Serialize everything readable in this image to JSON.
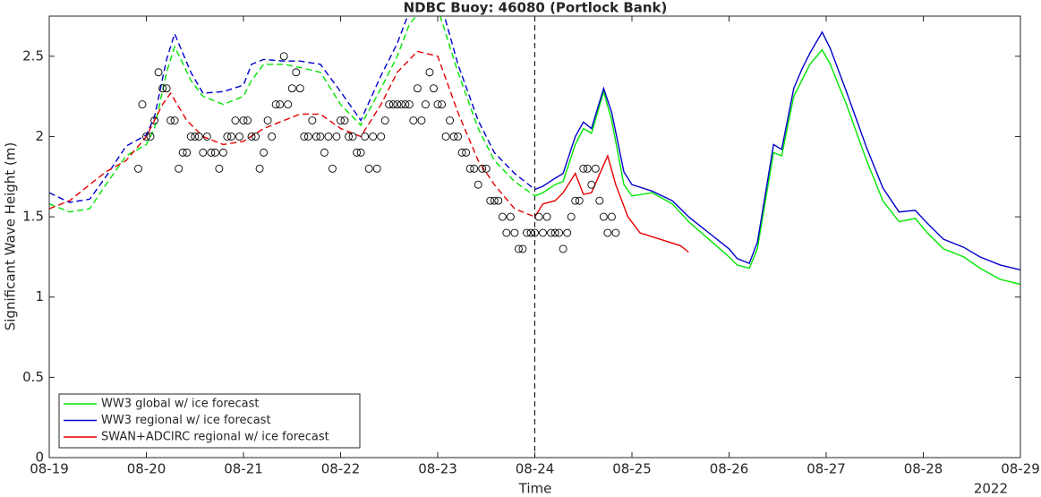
{
  "chart_data": {
    "type": "line",
    "title": "NDBC Buoy: 46080 (Portlock Bank)",
    "x_label": "Time",
    "y_label": "Significant Wave Height (m)",
    "year_label": "2022",
    "xlim": [
      0,
      240
    ],
    "xticks": [
      {
        "value": 0,
        "label": "08-19"
      },
      {
        "value": 24,
        "label": "08-20"
      },
      {
        "value": 48,
        "label": "08-21"
      },
      {
        "value": 72,
        "label": "08-22"
      },
      {
        "value": 96,
        "label": "08-23"
      },
      {
        "value": 120,
        "label": "08-24"
      },
      {
        "value": 144,
        "label": "08-25"
      },
      {
        "value": 168,
        "label": "08-26"
      },
      {
        "value": 192,
        "label": "08-27"
      },
      {
        "value": 216,
        "label": "08-28"
      },
      {
        "value": 240,
        "label": "08-29"
      }
    ],
    "ylim": [
      0,
      2.75
    ],
    "yticks": [
      0,
      0.5,
      1,
      1.5,
      2,
      2.5
    ],
    "grid": false,
    "forecast_start": 120,
    "legend": "lower left",
    "series": [
      {
        "name": "WW3 global w/ ice forecast",
        "color": "#00e600",
        "x": [
          0,
          5,
          10,
          14,
          19,
          24,
          26,
          29,
          31,
          35,
          38,
          43,
          48,
          50,
          53,
          58,
          62,
          67,
          72,
          77,
          82,
          86,
          89,
          91,
          94,
          96,
          101,
          106,
          110,
          115,
          120,
          122,
          125,
          127,
          130,
          132,
          134,
          137,
          139,
          142,
          144,
          149,
          154,
          158,
          163,
          168,
          170,
          173,
          175,
          179,
          181,
          184,
          186,
          188,
          191,
          193,
          197,
          202,
          206,
          210,
          214,
          217,
          221,
          226,
          230,
          235,
          240
        ],
        "values": [
          1.58,
          1.53,
          1.55,
          1.7,
          1.88,
          1.95,
          2.05,
          2.4,
          2.56,
          2.35,
          2.25,
          2.2,
          2.25,
          2.35,
          2.45,
          2.45,
          2.43,
          2.4,
          2.2,
          2.07,
          2.3,
          2.5,
          2.7,
          2.76,
          2.8,
          2.8,
          2.4,
          2.05,
          1.85,
          1.72,
          1.63,
          1.65,
          1.7,
          1.72,
          1.95,
          2.05,
          2.02,
          2.28,
          2.1,
          1.7,
          1.63,
          1.65,
          1.58,
          1.47,
          1.36,
          1.25,
          1.2,
          1.18,
          1.3,
          1.9,
          1.88,
          2.25,
          2.35,
          2.45,
          2.54,
          2.45,
          2.2,
          1.85,
          1.6,
          1.47,
          1.49,
          1.4,
          1.3,
          1.25,
          1.18,
          1.11,
          1.08
        ]
      },
      {
        "name": "WW3 regional w/ ice forecast",
        "color": "#0000cc",
        "x": [
          0,
          5,
          10,
          14,
          19,
          24,
          26,
          29,
          31,
          35,
          38,
          43,
          48,
          50,
          53,
          58,
          62,
          67,
          72,
          77,
          82,
          86,
          89,
          91,
          94,
          96,
          101,
          106,
          110,
          115,
          120,
          122,
          125,
          127,
          130,
          132,
          134,
          137,
          139,
          142,
          144,
          149,
          154,
          158,
          163,
          168,
          170,
          173,
          175,
          179,
          181,
          184,
          186,
          188,
          191,
          193,
          197,
          202,
          206,
          210,
          214,
          217,
          221,
          226,
          230,
          235,
          240
        ],
        "values": [
          1.65,
          1.59,
          1.61,
          1.75,
          1.94,
          2.01,
          2.12,
          2.48,
          2.64,
          2.4,
          2.27,
          2.28,
          2.32,
          2.45,
          2.48,
          2.47,
          2.47,
          2.45,
          2.28,
          2.1,
          2.38,
          2.58,
          2.78,
          2.85,
          2.9,
          2.9,
          2.45,
          2.1,
          1.9,
          1.77,
          1.67,
          1.69,
          1.74,
          1.77,
          2.0,
          2.09,
          2.05,
          2.3,
          2.15,
          1.78,
          1.7,
          1.66,
          1.6,
          1.5,
          1.4,
          1.3,
          1.24,
          1.21,
          1.34,
          1.95,
          1.92,
          2.3,
          2.42,
          2.52,
          2.65,
          2.55,
          2.28,
          1.93,
          1.68,
          1.53,
          1.54,
          1.46,
          1.36,
          1.31,
          1.25,
          1.2,
          1.17
        ]
      },
      {
        "name": "SWAN+ADCIRC regional w/ ice forecast",
        "color": "#e60000",
        "x": [
          0,
          5,
          10,
          14,
          19,
          24,
          28,
          30,
          34,
          38,
          43,
          48,
          53,
          58,
          62,
          67,
          72,
          77,
          82,
          86,
          91,
          96,
          101,
          106,
          110,
          115,
          120,
          122,
          125,
          127,
          130,
          132,
          134,
          138,
          140,
          143,
          146,
          151,
          156,
          158
        ],
        "values": [
          1.55,
          1.6,
          1.7,
          1.78,
          1.85,
          2.0,
          2.2,
          2.27,
          2.1,
          2.0,
          1.95,
          1.97,
          2.05,
          2.1,
          2.14,
          2.14,
          2.05,
          2.0,
          2.2,
          2.4,
          2.53,
          2.5,
          2.15,
          1.85,
          1.7,
          1.55,
          1.5,
          1.58,
          1.6,
          1.65,
          1.77,
          1.64,
          1.65,
          1.88,
          1.7,
          1.5,
          1.4,
          1.36,
          1.32,
          1.28
        ]
      }
    ],
    "points": {
      "color": "#000000",
      "x": [
        22,
        23,
        24,
        25,
        26,
        27,
        28,
        29,
        30,
        31,
        32,
        33,
        34,
        35,
        36,
        37,
        38,
        39,
        40,
        41,
        42,
        43,
        44,
        45,
        46,
        47,
        48,
        49,
        50,
        51,
        52,
        53,
        54,
        55,
        56,
        57,
        58,
        59,
        60,
        61,
        62,
        63,
        64,
        65,
        66,
        67,
        68,
        69,
        70,
        71,
        72,
        73,
        74,
        75,
        76,
        77,
        78,
        79,
        80,
        81,
        82,
        83,
        84,
        85,
        86,
        87,
        88,
        89,
        90,
        91,
        92,
        93,
        94,
        95,
        96,
        97,
        98,
        99,
        100,
        101,
        102,
        103,
        104,
        105,
        106,
        107,
        108,
        109,
        110,
        111,
        112,
        113,
        114,
        115,
        116,
        117,
        118,
        119,
        120,
        121,
        122,
        123,
        124,
        125,
        126,
        127,
        128,
        129,
        130,
        131,
        132,
        133,
        134,
        135,
        136,
        137,
        138,
        139,
        140
      ],
      "values": [
        1.8,
        2.2,
        2.0,
        2.0,
        2.1,
        2.4,
        2.3,
        2.3,
        2.1,
        2.1,
        1.8,
        1.9,
        1.9,
        2.0,
        2.0,
        2.0,
        1.9,
        2.0,
        1.9,
        1.9,
        1.8,
        1.9,
        2.0,
        2.0,
        2.1,
        2.0,
        2.1,
        2.1,
        2.0,
        2.0,
        1.8,
        1.9,
        2.1,
        2.0,
        2.2,
        2.2,
        2.5,
        2.2,
        2.3,
        2.4,
        2.3,
        2.0,
        2.0,
        2.1,
        2.0,
        2.0,
        1.9,
        2.0,
        1.8,
        2.0,
        2.1,
        2.1,
        2.0,
        2.0,
        1.9,
        1.9,
        2.0,
        1.8,
        2.0,
        1.8,
        2.0,
        2.1,
        2.2,
        2.2,
        2.2,
        2.2,
        2.2,
        2.2,
        2.1,
        2.3,
        2.1,
        2.2,
        2.4,
        2.3,
        2.2,
        2.2,
        2.0,
        2.1,
        2.0,
        2.0,
        1.9,
        1.9,
        1.8,
        1.8,
        1.7,
        1.8,
        1.8,
        1.6,
        1.6,
        1.6,
        1.5,
        1.4,
        1.5,
        1.4,
        1.3,
        1.3,
        1.4,
        1.4,
        1.4,
        1.5,
        1.4,
        1.5,
        1.4,
        1.4,
        1.4,
        1.3,
        1.4,
        1.5,
        1.6,
        1.6,
        1.8,
        1.8,
        1.7,
        1.8,
        1.6,
        1.5,
        1.4,
        1.5,
        1.4
      ]
    }
  }
}
